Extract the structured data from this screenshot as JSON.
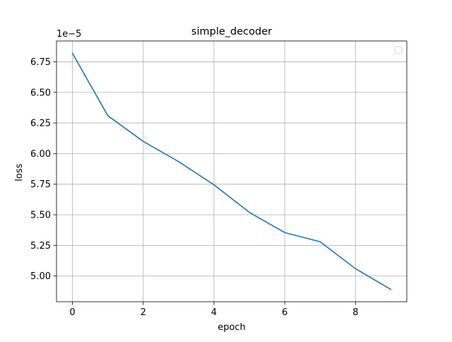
{
  "chart_data": {
    "type": "line",
    "title": "simple_decoder",
    "xlabel": "epoch",
    "ylabel": "loss",
    "y_offset_label": "1e−5",
    "x": [
      0,
      1,
      2,
      3,
      4,
      5,
      6,
      7,
      8,
      9
    ],
    "series": [
      {
        "values": [
          6.82e-05,
          6.31e-05,
          6.1e-05,
          5.935e-05,
          5.745e-05,
          5.52e-05,
          5.355e-05,
          5.28e-05,
          5.06e-05,
          4.89e-05
        ],
        "color": "#1f77b4"
      }
    ],
    "xlim": [
      -0.45,
      9.45
    ],
    "ylim": [
      4.79e-05,
      6.92e-05
    ],
    "x_ticks": [
      0,
      2,
      4,
      6,
      8
    ],
    "x_tick_labels": [
      "0",
      "2",
      "4",
      "6",
      "8"
    ],
    "y_ticks": [
      5e-05,
      5.25e-05,
      5.5e-05,
      5.75e-05,
      6e-05,
      6.25e-05,
      6.5e-05,
      6.75e-05
    ],
    "y_tick_labels": [
      "5.00",
      "5.25",
      "5.50",
      "5.75",
      "6.00",
      "6.25",
      "6.50",
      "6.75"
    ],
    "grid": true,
    "legend_placement": "top-right",
    "legend_entries": []
  }
}
